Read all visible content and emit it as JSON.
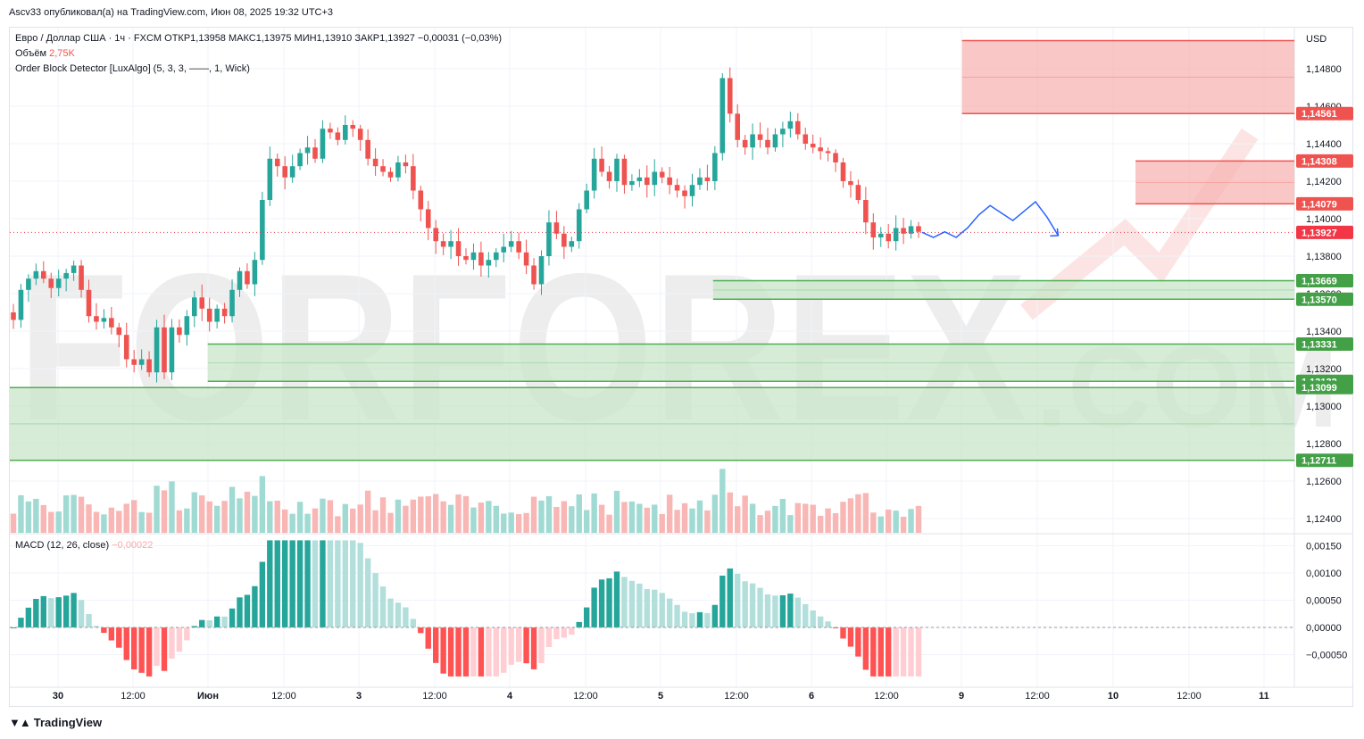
{
  "header": {
    "published_line": "Ascv33 опубликовал(а) на TradingView.com, Июн 08, 2025 19:32 UTC+3"
  },
  "legend": {
    "symbol_line": "Евро / Доллар США · 1ч · FXCM  ОТКР1,13958  МАКС1,13975  МИН1,13910  ЗАКР1,13927  −0,00031 (−0,03%)",
    "volume_label": "Объём",
    "volume_value": "2,75K",
    "indicator_line": "Order Block Detector [LuxAlgo] (5, 3, 3, ——, 1, Wick)"
  },
  "macd": {
    "label": "MACD (12, 26, close)",
    "value": "−0,00022"
  },
  "footer": {
    "brand": "TradingView"
  },
  "watermark": {
    "text1": "FORFOREX",
    "text2": ".COM"
  },
  "colors": {
    "up": "#26a69a",
    "down": "#ef5350",
    "bear_zone": "#f7b4b2",
    "bull_zone": "#c8e6c9",
    "projection": "#2962ff",
    "last_price": "#f23645"
  },
  "chart_data": {
    "type": "candlestick",
    "currency": "USD",
    "price_axis_ticks": [
      "1,14800",
      "1,14600",
      "1,14400",
      "1,14200",
      "1,14000",
      "1,13800",
      "1,13600",
      "1,13400",
      "1,13200",
      "1,13000",
      "1,12800",
      "1,12600",
      "1,12400"
    ],
    "price_ticks_values": [
      1.148,
      1.146,
      1.144,
      1.142,
      1.14,
      1.138,
      1.136,
      1.134,
      1.132,
      1.13,
      1.128,
      1.126,
      1.124
    ],
    "time_axis_labels": [
      "30",
      "12:00",
      "Июн",
      "12:00",
      "3",
      "12:00",
      "4",
      "12:00",
      "5",
      "12:00",
      "6",
      "12:00",
      "9",
      "12:00",
      "10",
      "12:00",
      "11"
    ],
    "price_labels": [
      {
        "text": "1,14561",
        "value": 1.14561,
        "type": "bear"
      },
      {
        "text": "1,14308",
        "value": 1.14308,
        "type": "bear"
      },
      {
        "text": "1,14079",
        "value": 1.14079,
        "type": "bear"
      },
      {
        "text": "1,13927",
        "value": 1.13927,
        "type": "last"
      },
      {
        "text": "1,13669",
        "value": 1.13669,
        "type": "bull"
      },
      {
        "text": "1,13570",
        "value": 1.1357,
        "type": "bull"
      },
      {
        "text": "1,13331",
        "value": 1.13331,
        "type": "bull"
      },
      {
        "text": "1,13132",
        "value": 1.13132,
        "type": "bull"
      },
      {
        "text": "1,13099",
        "value": 1.13099,
        "type": "bull"
      },
      {
        "text": "1,12711",
        "value": 1.12711,
        "type": "bull"
      }
    ],
    "order_blocks": [
      {
        "type": "bear",
        "top": 1.1495,
        "bottom": 1.14561,
        "start_bar": 126
      },
      {
        "type": "bear",
        "top": 1.14308,
        "bottom": 1.14079,
        "start_bar": 149
      },
      {
        "type": "bull",
        "top": 1.13669,
        "bottom": 1.1357,
        "start_bar": 93
      },
      {
        "type": "bull",
        "top": 1.13331,
        "bottom": 1.13132,
        "start_bar": 26
      },
      {
        "type": "bull",
        "top": 1.13099,
        "bottom": 1.12711,
        "start_bar": 0
      }
    ],
    "macd_axis_ticks": [
      "0,00150",
      "0,00100",
      "0,00050",
      "0,00000",
      "−0,00050"
    ],
    "macd_ticks_values": [
      0.0015,
      0.001,
      0.0005,
      0,
      -0.0005
    ],
    "close_path": [
      1.1346,
      1.1362,
      1.1368,
      1.1372,
      1.1368,
      1.1363,
      1.1368,
      1.1371,
      1.1375,
      1.1362,
      1.1348,
      1.1345,
      1.1347,
      1.1342,
      1.1338,
      1.1325,
      1.1322,
      1.1325,
      1.1318,
      1.1342,
      1.1318,
      1.1342,
      1.1338,
      1.1348,
      1.1358,
      1.1352,
      1.1345,
      1.1352,
      1.1348,
      1.1362,
      1.1372,
      1.1365,
      1.1378,
      1.141,
      1.1432,
      1.1428,
      1.1422,
      1.1428,
      1.1435,
      1.1438,
      1.1432,
      1.1448,
      1.1446,
      1.1442,
      1.145,
      1.1448,
      1.1442,
      1.1432,
      1.1428,
      1.1425,
      1.1422,
      1.143,
      1.1428,
      1.1415,
      1.1405,
      1.1395,
      1.1388,
      1.1385,
      1.1388,
      1.138,
      1.1378,
      1.1382,
      1.1375,
      1.1378,
      1.1382,
      1.1385,
      1.1388,
      1.1382,
      1.1375,
      1.1365,
      1.138,
      1.1398,
      1.1392,
      1.1385,
      1.1388,
      1.1405,
      1.1415,
      1.1432,
      1.1425,
      1.142,
      1.1432,
      1.1418,
      1.142,
      1.1422,
      1.1418,
      1.1425,
      1.1422,
      1.1418,
      1.1415,
      1.1412,
      1.1418,
      1.1422,
      1.142,
      1.1435,
      1.1475,
      1.1456,
      1.1442,
      1.1438,
      1.1445,
      1.1442,
      1.1438,
      1.1445,
      1.1448,
      1.1452,
      1.1445,
      1.144,
      1.1438,
      1.1436,
      1.1435,
      1.143,
      1.142,
      1.1418,
      1.141,
      1.1398,
      1.139,
      1.1392,
      1.1388,
      1.1395,
      1.1392,
      1.1396,
      1.1393
    ],
    "projection_path": [
      1.13927,
      1.139,
      1.1393,
      1.139,
      1.1395,
      1.1402,
      1.1407,
      1.1403,
      1.1399,
      1.1404,
      1.1409,
      1.1401,
      1.1391
    ]
  }
}
